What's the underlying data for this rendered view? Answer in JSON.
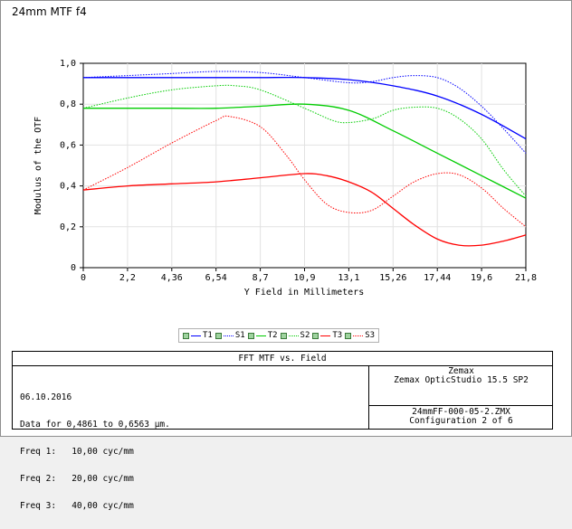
{
  "window": {
    "title": "24mm MTF f4"
  },
  "chart_data": {
    "type": "line",
    "title": "FFT MTF vs. Field",
    "xlabel": "Y Field in Millimeters",
    "ylabel": "Modulus of the OTF",
    "xlim": [
      0,
      21.8
    ],
    "ylim": [
      0,
      1.0
    ],
    "x_ticks": [
      0,
      2.18,
      4.36,
      6.54,
      8.72,
      10.9,
      13.08,
      15.26,
      17.44,
      19.62,
      21.8
    ],
    "x_tick_labels": [
      "0",
      "2,2",
      "4,36",
      "6,54",
      "8,7",
      "10,9",
      "13,1",
      "15,26",
      "17,44",
      "19,6",
      "21,8"
    ],
    "y_ticks": [
      0,
      0.2,
      0.4,
      0.6,
      0.8,
      1.0
    ],
    "y_tick_labels": [
      "0",
      "0,2",
      "0,4",
      "0,6",
      "0,8",
      "1,0"
    ],
    "grid": true,
    "legend_position": "below",
    "series": [
      {
        "name": "T1",
        "color": "#0000ff",
        "dash": "solid",
        "x": [
          0,
          2.18,
          4.36,
          6.54,
          8.72,
          10.9,
          13.08,
          15.26,
          17.44,
          19.62,
          21.8
        ],
        "y": [
          0.93,
          0.93,
          0.93,
          0.93,
          0.93,
          0.93,
          0.92,
          0.89,
          0.84,
          0.75,
          0.63
        ]
      },
      {
        "name": "S1",
        "color": "#0000ff",
        "dash": "dotted",
        "x": [
          0,
          2.18,
          4.36,
          6.54,
          8.72,
          10.9,
          13.08,
          14.2,
          15.26,
          16.3,
          17.44,
          18.5,
          19.62,
          20.7,
          21.8
        ],
        "y": [
          0.93,
          0.94,
          0.95,
          0.96,
          0.955,
          0.93,
          0.905,
          0.91,
          0.93,
          0.94,
          0.93,
          0.88,
          0.79,
          0.68,
          0.56
        ]
      },
      {
        "name": "T2",
        "color": "#00cc00",
        "dash": "solid",
        "x": [
          0,
          2.18,
          4.36,
          6.54,
          8.72,
          10.9,
          13.08,
          15.26,
          17.44,
          19.62,
          21.8
        ],
        "y": [
          0.78,
          0.78,
          0.78,
          0.78,
          0.79,
          0.8,
          0.77,
          0.67,
          0.56,
          0.45,
          0.34
        ]
      },
      {
        "name": "S2",
        "color": "#00cc00",
        "dash": "dotted",
        "x": [
          0,
          2.18,
          4.36,
          6.54,
          7.5,
          8.72,
          10.9,
          12.3,
          13.08,
          14.3,
          15.26,
          16.3,
          17.44,
          18.5,
          19.62,
          20.7,
          21.8
        ],
        "y": [
          0.78,
          0.83,
          0.87,
          0.89,
          0.89,
          0.87,
          0.78,
          0.72,
          0.71,
          0.73,
          0.77,
          0.785,
          0.78,
          0.73,
          0.63,
          0.48,
          0.35
        ]
      },
      {
        "name": "T3",
        "color": "#ff0000",
        "dash": "solid",
        "x": [
          0,
          2.18,
          4.36,
          6.54,
          8.72,
          10.9,
          12.0,
          13.08,
          14.2,
          15.26,
          16.3,
          17.44,
          18.5,
          19.62,
          20.7,
          21.8
        ],
        "y": [
          0.38,
          0.4,
          0.41,
          0.42,
          0.44,
          0.46,
          0.45,
          0.42,
          0.37,
          0.29,
          0.21,
          0.14,
          0.11,
          0.11,
          0.13,
          0.16
        ]
      },
      {
        "name": "S3",
        "color": "#ff0000",
        "dash": "dotted",
        "x": [
          0,
          2.18,
          4.36,
          6.54,
          7.2,
          8.72,
          10.0,
          10.9,
          12.0,
          13.08,
          14.2,
          15.26,
          16.3,
          17.44,
          18.5,
          19.62,
          20.7,
          21.8
        ],
        "y": [
          0.38,
          0.49,
          0.61,
          0.72,
          0.74,
          0.69,
          0.55,
          0.43,
          0.31,
          0.27,
          0.28,
          0.35,
          0.42,
          0.46,
          0.455,
          0.39,
          0.29,
          0.2
        ]
      }
    ]
  },
  "info": {
    "title": "FFT MTF vs. Field",
    "date": "06.10.2016",
    "data_range": "Data for 0,4861 to 0,6563 µm.",
    "freq1": "Freq 1:   10,00 cyc/mm",
    "freq2": "Freq 2:   20,00 cyc/mm",
    "freq3": "Freq 3:   40,00 cyc/mm",
    "company": "Zemax",
    "software": "Zemax OpticStudio 15.5 SP2",
    "file": "24mmFF-000-05-2.ZMX",
    "configuration": "Configuration 2 of 6"
  }
}
